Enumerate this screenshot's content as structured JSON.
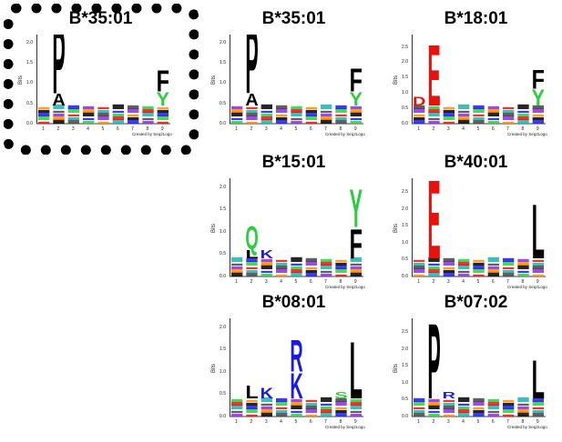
{
  "panels": [
    {
      "id": "p0",
      "title": "B*35:01",
      "yticks": [
        "2.0",
        "1.5",
        "1.0",
        "0.5",
        "0.0"
      ],
      "ylabel": "Bits",
      "xticks": [
        "1",
        "2",
        "3",
        "4",
        "5",
        "6",
        "7",
        "8",
        "9"
      ],
      "credit": "Created by Seq2Logo",
      "highlighted": true,
      "letters": [
        {
          "pos": 2,
          "char": "P",
          "color": "#000000",
          "h": 1.75
        },
        {
          "pos": 2,
          "char": "A",
          "color": "#000000",
          "h": 0.3
        },
        {
          "pos": 9,
          "char": "Y",
          "color": "#2ecc40",
          "h": 0.35
        },
        {
          "pos": 9,
          "char": "F",
          "color": "#000000",
          "h": 0.55
        }
      ]
    },
    {
      "id": "p1",
      "title": "B*35:01",
      "yticks": [
        "2.0",
        "1.5",
        "1.0",
        "0.5",
        "0.0"
      ],
      "ylabel": "Bits",
      "xticks": [
        "1",
        "2",
        "3",
        "4",
        "5",
        "6",
        "7",
        "8",
        "9"
      ],
      "credit": "Created by Seq2Logo",
      "letters": [
        {
          "pos": 2,
          "char": "P",
          "color": "#000000",
          "h": 1.7
        },
        {
          "pos": 2,
          "char": "A",
          "color": "#000000",
          "h": 0.3
        },
        {
          "pos": 9,
          "char": "Y",
          "color": "#2ecc40",
          "h": 0.35
        },
        {
          "pos": 9,
          "char": "F",
          "color": "#000000",
          "h": 0.6
        }
      ]
    },
    {
      "id": "p2",
      "title": "B*18:01",
      "yticks": [
        "2.5",
        "2.0",
        "1.5",
        "1.0",
        "0.5",
        "0.0"
      ],
      "ylabel": "Bits",
      "xticks": [
        "1",
        "2",
        "3",
        "4",
        "5",
        "6",
        "7",
        "8",
        "9"
      ],
      "credit": "Created by Seq2Logo",
      "letters": [
        {
          "pos": 2,
          "char": "E",
          "color": "#e8120c",
          "h": 2.1
        },
        {
          "pos": 1,
          "char": "D",
          "color": "#e8120c",
          "h": 0.3
        },
        {
          "pos": 9,
          "char": "F",
          "color": "#000000",
          "h": 0.65
        },
        {
          "pos": 9,
          "char": "Y",
          "color": "#2ecc40",
          "h": 0.55
        }
      ]
    },
    {
      "id": "p3",
      "title": "B*15:01",
      "yticks": [
        "2.0",
        "1.5",
        "1.0",
        "0.5",
        "0.0"
      ],
      "ylabel": "Bits",
      "xticks": [
        "1",
        "2",
        "3",
        "4",
        "5",
        "6",
        "7",
        "8",
        "9"
      ],
      "credit": "Created by Seq2Logo",
      "letters": [
        {
          "pos": 2,
          "char": "Q",
          "color": "#2ecc40",
          "h": 0.55
        },
        {
          "pos": 2,
          "char": "L",
          "color": "#000000",
          "h": 0.2
        },
        {
          "pos": 3,
          "char": "K",
          "color": "#1a1ae6",
          "h": 0.2
        },
        {
          "pos": 9,
          "char": "Y",
          "color": "#2ecc40",
          "h": 0.9
        },
        {
          "pos": 9,
          "char": "F",
          "color": "#000000",
          "h": 0.7
        }
      ]
    },
    {
      "id": "p4",
      "title": "B*40:01",
      "yticks": [
        "2.5",
        "2.0",
        "1.5",
        "1.0",
        "0.5",
        "0.0"
      ],
      "ylabel": "Bits",
      "xticks": [
        "1",
        "2",
        "3",
        "4",
        "5",
        "6",
        "7",
        "8",
        "9"
      ],
      "credit": "Created by Seq2Logo",
      "letters": [
        {
          "pos": 2,
          "char": "E",
          "color": "#e8120c",
          "h": 2.45
        },
        {
          "pos": 9,
          "char": "L",
          "color": "#000000",
          "h": 1.7
        }
      ]
    },
    {
      "id": "p5",
      "title": "B*08:01",
      "yticks": [
        "2.0",
        "1.5",
        "1.0",
        "0.5",
        "0.0"
      ],
      "ylabel": "Bits",
      "xticks": [
        "1",
        "2",
        "3",
        "4",
        "5",
        "6",
        "7",
        "8",
        "9"
      ],
      "credit": "Created by Seq2Logo",
      "letters": [
        {
          "pos": 5,
          "char": "R",
          "color": "#1a1ae6",
          "h": 0.75
        },
        {
          "pos": 5,
          "char": "K",
          "color": "#1a1ae6",
          "h": 0.6
        },
        {
          "pos": 2,
          "char": "L",
          "color": "#000000",
          "h": 0.3
        },
        {
          "pos": 3,
          "char": "K",
          "color": "#1a1ae6",
          "h": 0.25
        },
        {
          "pos": 9,
          "char": "L",
          "color": "#000000",
          "h": 1.35
        },
        {
          "pos": 8,
          "char": "S",
          "color": "#2ecc40",
          "h": 0.15
        }
      ]
    },
    {
      "id": "p6",
      "title": "B*07:02",
      "yticks": [
        "2.5",
        "2.0",
        "1.5",
        "1.0",
        "0.5",
        "0.0"
      ],
      "ylabel": "Bits",
      "xticks": [
        "1",
        "2",
        "3",
        "4",
        "5",
        "6",
        "7",
        "8",
        "9"
      ],
      "credit": "Created by Seq2Logo",
      "letters": [
        {
          "pos": 2,
          "char": "P",
          "color": "#000000",
          "h": 2.35
        },
        {
          "pos": 3,
          "char": "R",
          "color": "#1a1ae6",
          "h": 0.2
        },
        {
          "pos": 9,
          "char": "L",
          "color": "#000000",
          "h": 1.2
        }
      ]
    }
  ]
}
